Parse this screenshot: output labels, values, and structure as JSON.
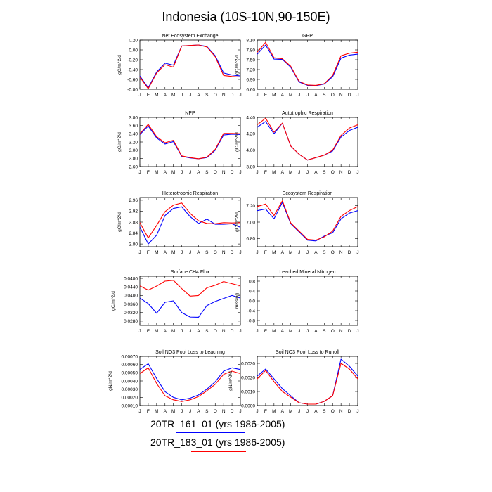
{
  "title": "Indonesia (10S-10N,90-150E)",
  "month_labels": [
    "J",
    "F",
    "M",
    "A",
    "M",
    "J",
    "J",
    "A",
    "S",
    "O",
    "N",
    "D",
    "J"
  ],
  "legend": [
    {
      "label": "20TR_161_01 (yrs 1986-2005)",
      "color": "#0000ff"
    },
    {
      "label": "20TR_183_01 (yrs 1986-2005)",
      "color": "#ff0000"
    }
  ],
  "colors": {
    "run_161": "#0000ff",
    "run_183": "#ff0000"
  },
  "chart_data": [
    {
      "type": "line",
      "title": "Net Ecosystem Exchange",
      "ylabel": "gC/m^2/d",
      "ylim": [
        -0.8,
        0.2
      ],
      "yticks": [
        -0.8,
        -0.6,
        -0.4,
        -0.2,
        0.0,
        0.2
      ],
      "tick_decimals": 2,
      "series": [
        {
          "name": "20TR_161_01 (yrs 1986-2005)",
          "color": "#0000ff",
          "values": [
            -0.53,
            -0.77,
            -0.45,
            -0.27,
            -0.31,
            0.08,
            0.09,
            0.1,
            0.07,
            -0.12,
            -0.47,
            -0.51,
            -0.53
          ]
        },
        {
          "name": "20TR_183_01 (yrs 1986-2005)",
          "color": "#ff0000",
          "values": [
            -0.55,
            -0.79,
            -0.47,
            -0.3,
            -0.35,
            0.08,
            0.09,
            0.1,
            0.06,
            -0.14,
            -0.52,
            -0.54,
            -0.55
          ]
        }
      ]
    },
    {
      "type": "line",
      "title": "GPP",
      "ylabel": "gC/m^2/d",
      "ylim": [
        6.6,
        8.1
      ],
      "yticks": [
        6.6,
        6.9,
        7.2,
        7.5,
        7.8,
        8.1
      ],
      "tick_decimals": 2,
      "series": [
        {
          "name": "20TR_161_01 (yrs 1986-2005)",
          "color": "#0000ff",
          "values": [
            7.67,
            7.95,
            7.52,
            7.51,
            7.27,
            6.82,
            6.72,
            6.71,
            6.76,
            6.98,
            7.55,
            7.64,
            7.67
          ]
        },
        {
          "name": "20TR_183_01 (yrs 1986-2005)",
          "color": "#ff0000",
          "values": [
            7.73,
            8.03,
            7.56,
            7.53,
            7.3,
            6.84,
            6.73,
            6.72,
            6.77,
            7.02,
            7.62,
            7.7,
            7.73
          ]
        }
      ]
    },
    {
      "type": "line",
      "title": "NPP",
      "ylabel": "gC/m^2/d",
      "ylim": [
        2.6,
        3.8
      ],
      "yticks": [
        2.6,
        2.8,
        3.0,
        3.2,
        3.4,
        3.6,
        3.8
      ],
      "tick_decimals": 2,
      "series": [
        {
          "name": "20TR_161_01 (yrs 1986-2005)",
          "color": "#0000ff",
          "values": [
            3.38,
            3.59,
            3.3,
            3.15,
            3.21,
            2.85,
            2.81,
            2.79,
            2.82,
            3.0,
            3.37,
            3.39,
            3.38
          ]
        },
        {
          "name": "20TR_183_01 (yrs 1986-2005)",
          "color": "#ff0000",
          "values": [
            3.4,
            3.63,
            3.33,
            3.18,
            3.24,
            2.86,
            2.82,
            2.79,
            2.83,
            3.02,
            3.41,
            3.41,
            3.4
          ]
        }
      ]
    },
    {
      "type": "line",
      "title": "Autotrophic Respiration",
      "ylabel": "gC/m^2/d",
      "ylim": [
        3.8,
        4.4
      ],
      "yticks": [
        3.8,
        4.0,
        4.2,
        4.4
      ],
      "tick_decimals": 2,
      "series": [
        {
          "name": "20TR_161_01 (yrs 1986-2005)",
          "color": "#0000ff",
          "values": [
            4.28,
            4.35,
            4.2,
            4.33,
            4.05,
            3.95,
            3.88,
            3.91,
            3.94,
            3.99,
            4.16,
            4.24,
            4.28
          ]
        },
        {
          "name": "20TR_183_01 (yrs 1986-2005)",
          "color": "#ff0000",
          "values": [
            4.31,
            4.39,
            4.22,
            4.33,
            4.05,
            3.95,
            3.88,
            3.91,
            3.94,
            4.0,
            4.18,
            4.27,
            4.31
          ]
        }
      ]
    },
    {
      "type": "line",
      "title": "Heterotrophic Respiration",
      "ylabel": "gC/m^2/d",
      "ylim": [
        2.79,
        2.97
      ],
      "yticks": [
        2.8,
        2.84,
        2.88,
        2.92,
        2.96
      ],
      "tick_decimals": 2,
      "series": [
        {
          "name": "20TR_161_01 (yrs 1986-2005)",
          "color": "#0000ff",
          "values": [
            2.862,
            2.8,
            2.832,
            2.904,
            2.93,
            2.936,
            2.9,
            2.875,
            2.891,
            2.872,
            2.872,
            2.874,
            2.861
          ]
        },
        {
          "name": "20TR_183_01 (yrs 1986-2005)",
          "color": "#ff0000",
          "values": [
            2.878,
            2.822,
            2.868,
            2.918,
            2.942,
            2.95,
            2.912,
            2.885,
            2.875,
            2.874,
            2.878,
            2.877,
            2.878
          ]
        }
      ]
    },
    {
      "type": "line",
      "title": "Ecosystem Respiration",
      "ylabel": "gC/m^2/d",
      "ylim": [
        6.7,
        7.3
      ],
      "yticks": [
        6.8,
        7.0,
        7.2
      ],
      "tick_decimals": 2,
      "series": [
        {
          "name": "20TR_161_01 (yrs 1986-2005)",
          "color": "#0000ff",
          "values": [
            7.14,
            7.16,
            7.04,
            7.24,
            6.98,
            6.88,
            6.78,
            6.77,
            6.83,
            6.87,
            7.04,
            7.11,
            7.14
          ]
        },
        {
          "name": "20TR_183_01 (yrs 1986-2005)",
          "color": "#ff0000",
          "values": [
            7.19,
            7.22,
            7.08,
            7.26,
            6.99,
            6.89,
            6.79,
            6.78,
            6.82,
            6.89,
            7.07,
            7.14,
            7.19
          ]
        }
      ]
    },
    {
      "type": "line",
      "title": "Surface CH4 Flux",
      "ylabel": "gC/m^2/d",
      "ylim": [
        0.026,
        0.049
      ],
      "yticks": [
        0.028,
        0.032,
        0.036,
        0.04,
        0.044,
        0.048
      ],
      "tick_decimals": 4,
      "series": [
        {
          "name": "20TR_161_01 (yrs 1986-2005)",
          "color": "#0000ff",
          "values": [
            0.0388,
            0.0362,
            0.0317,
            0.0368,
            0.0375,
            0.032,
            0.0299,
            0.0298,
            0.0353,
            0.0372,
            0.0386,
            0.04,
            0.0388
          ]
        },
        {
          "name": "20TR_183_01 (yrs 1986-2005)",
          "color": "#ff0000",
          "values": [
            0.0445,
            0.0425,
            0.0444,
            0.0467,
            0.0471,
            0.0432,
            0.0397,
            0.04,
            0.0436,
            0.0448,
            0.0465,
            0.0455,
            0.0445
          ]
        }
      ]
    },
    {
      "type": "line",
      "title": "Leached Mineral Nitrogen",
      "ylabel": "missing",
      "ylim": [
        -1.0,
        1.0
      ],
      "yticks": [
        -0.8,
        -0.4,
        0.0,
        0.4,
        0.8
      ],
      "tick_decimals": 1,
      "series": []
    },
    {
      "type": "line",
      "title": "Soil NO3 Pool Loss to Leaching",
      "ylabel": "gN/m^2/d",
      "ylim": [
        0.0001,
        0.0007
      ],
      "yticks": [
        0.0001,
        0.0002,
        0.0003,
        0.0004,
        0.0005,
        0.0006,
        0.0007
      ],
      "tick_decimals": 5,
      "series": [
        {
          "name": "20TR_161_01 (yrs 1986-2005)",
          "color": "#0000ff",
          "values": [
            0.00054,
            0.00061,
            0.00043,
            0.00027,
            0.0002,
            0.00017,
            0.00019,
            0.00023,
            0.0003,
            0.00039,
            0.00052,
            0.00056,
            0.00054
          ]
        },
        {
          "name": "20TR_183_01 (yrs 1986-2005)",
          "color": "#ff0000",
          "values": [
            0.00049,
            0.00056,
            0.00037,
            0.00022,
            0.00017,
            0.00015,
            0.00017,
            0.00021,
            0.00028,
            0.00036,
            0.00048,
            0.00052,
            0.00049
          ]
        }
      ]
    },
    {
      "type": "line",
      "title": "Soil NO3 Pool Loss to Runoff",
      "ylabel": "gN/m^2/d",
      "ylim": [
        0.0,
        0.0035
      ],
      "yticks": [
        0.0,
        0.001,
        0.002,
        0.003
      ],
      "tick_decimals": 4,
      "series": [
        {
          "name": "20TR_161_01 (yrs 1986-2005)",
          "color": "#0000ff",
          "values": [
            0.0021,
            0.0026,
            0.0019,
            0.0012,
            0.0007,
            0.0002,
            0.0001,
            0.0001,
            0.0003,
            0.0007,
            0.0033,
            0.0028,
            0.0021
          ]
        },
        {
          "name": "20TR_183_01 (yrs 1986-2005)",
          "color": "#ff0000",
          "values": [
            0.0019,
            0.0025,
            0.0017,
            0.001,
            0.0006,
            0.0002,
            0.0001,
            0.0001,
            0.0003,
            0.0007,
            0.003,
            0.0026,
            0.0019
          ]
        }
      ]
    }
  ]
}
